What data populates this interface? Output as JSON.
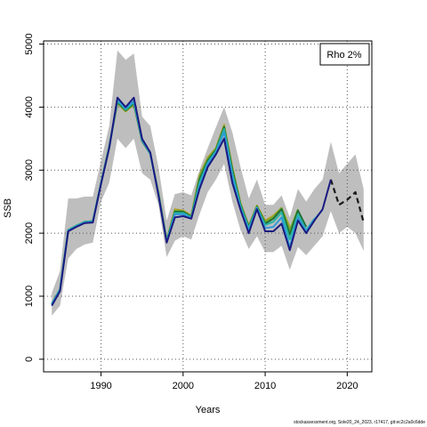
{
  "chart_data": {
    "type": "line",
    "xlabel": "Years",
    "ylabel": "SSB",
    "xlim": [
      1983,
      2023
    ],
    "ylim": [
      -200,
      5050
    ],
    "xticks": [
      1990,
      2000,
      2010,
      2020
    ],
    "yticks": [
      0,
      1000,
      2000,
      3000,
      4000,
      5000
    ],
    "grid": true,
    "legend_text": "Rho 2%",
    "legend_position": "top-right",
    "band": {
      "x": [
        1984,
        1985,
        1986,
        1987,
        1988,
        1989,
        1990,
        1991,
        1992,
        1993,
        1994,
        1995,
        1996,
        1997,
        1998,
        1999,
        2000,
        2001,
        2002,
        2003,
        2004,
        2005,
        2006,
        2007,
        2008,
        2009,
        2010,
        2011,
        2012,
        2013,
        2014,
        2015,
        2016,
        2017,
        2018,
        2019,
        2020,
        2021,
        2022
      ],
      "upper": [
        1050,
        1400,
        2550,
        2550,
        2580,
        2580,
        3150,
        3700,
        4900,
        4750,
        4850,
        3850,
        3700,
        3050,
        2200,
        2620,
        2650,
        2600,
        3000,
        3350,
        3680,
        4000,
        3600,
        3050,
        2550,
        2850,
        2450,
        2450,
        2600,
        2250,
        2700,
        2500,
        2700,
        2850,
        3450,
        2950,
        3100,
        3250,
        2700
      ],
      "lower": [
        690,
        850,
        1600,
        1750,
        1820,
        1850,
        2500,
        2800,
        3500,
        3350,
        3500,
        2950,
        2850,
        2450,
        1620,
        1880,
        1950,
        1900,
        2300,
        2650,
        2850,
        3100,
        2500,
        2050,
        1750,
        1950,
        1700,
        1700,
        1800,
        1420,
        1780,
        1650,
        1800,
        1950,
        2350,
        2000,
        2100,
        2000,
        1720
      ]
    },
    "series": [
      {
        "x": [
          1984,
          1985,
          1986,
          1987,
          1988,
          1989,
          1990,
          1991,
          1992,
          1993,
          1994,
          1995,
          1996,
          1997,
          1998,
          1999,
          2000,
          2001,
          2002,
          2003,
          2004,
          2005,
          2006,
          2007,
          2008,
          2009,
          2010,
          2011,
          2012,
          2013,
          2014,
          2015,
          2016,
          2017,
          2018
        ],
        "y": [
          850,
          1080,
          2030,
          2100,
          2160,
          2170,
          2780,
          3350,
          4150,
          4000,
          4150,
          3500,
          3280,
          2600,
          1850,
          2250,
          2270,
          2230,
          2700,
          3050,
          3250,
          3500,
          2800,
          2370,
          2000,
          2380,
          2030,
          2030,
          2150,
          1730,
          2200,
          2000,
          2200,
          2380,
          2850
        ],
        "color": "#1a1a80"
      },
      {
        "x": [
          1984,
          1985,
          1986,
          1987,
          1988,
          1989,
          1990,
          1991,
          1992,
          1993,
          1994,
          1995,
          1996,
          1997,
          1998,
          1999,
          2000,
          2001,
          2002,
          2003,
          2004,
          2005,
          2006,
          2007,
          2008,
          2009,
          2010,
          2011,
          2012,
          2013,
          2014,
          2015,
          2016,
          2017
        ],
        "y": [
          870,
          1100,
          2040,
          2110,
          2170,
          2180,
          2790,
          3360,
          4120,
          3980,
          4100,
          3480,
          3270,
          2610,
          1860,
          2300,
          2300,
          2240,
          2750,
          3100,
          3280,
          3600,
          2900,
          2400,
          2050,
          2400,
          2080,
          2100,
          2250,
          1780,
          2250,
          2030,
          2220,
          2370
        ],
        "color": "#2f9ad8"
      },
      {
        "x": [
          1984,
          1985,
          1986,
          1987,
          1988,
          1989,
          1990,
          1991,
          1992,
          1993,
          1994,
          1995,
          1996,
          1997,
          1998,
          1999,
          2000,
          2001,
          2002,
          2003,
          2004,
          2005,
          2006,
          2007,
          2008,
          2009,
          2010,
          2011,
          2012,
          2013,
          2014,
          2015,
          2016
        ],
        "y": [
          880,
          1110,
          2050,
          2120,
          2180,
          2190,
          2800,
          3370,
          4100,
          3960,
          4080,
          3470,
          3260,
          2620,
          1870,
          2320,
          2320,
          2250,
          2800,
          3120,
          3300,
          3650,
          2950,
          2430,
          2080,
          2410,
          2130,
          2180,
          2330,
          1900,
          2300,
          2050,
          2230
        ],
        "color": "#27b5a4"
      },
      {
        "x": [
          1984,
          1985,
          1986,
          1987,
          1988,
          1989,
          1990,
          1991,
          1992,
          1993,
          1994,
          1995,
          1996,
          1997,
          1998,
          1999,
          2000,
          2001,
          2002,
          2003,
          2004,
          2005,
          2006,
          2007,
          2008,
          2009,
          2010,
          2011,
          2012,
          2013,
          2014,
          2015
        ],
        "y": [
          880,
          1110,
          2050,
          2120,
          2180,
          2190,
          2800,
          3380,
          4080,
          3950,
          4060,
          3460,
          3260,
          2630,
          1880,
          2340,
          2340,
          2260,
          2850,
          3150,
          3320,
          3680,
          3000,
          2450,
          2100,
          2420,
          2150,
          2230,
          2380,
          1980,
          2360,
          2100
        ],
        "color": "#1e6e36"
      },
      {
        "x": [
          1984,
          1985,
          1986,
          1987,
          1988,
          1989,
          1990,
          1991,
          1992,
          1993,
          1994,
          1995,
          1996,
          1997,
          1998,
          1999,
          2000,
          2001,
          2002,
          2003,
          2004,
          2005,
          2006,
          2007,
          2008,
          2009,
          2010,
          2011,
          2012,
          2013,
          2014
        ],
        "y": [
          880,
          1110,
          2050,
          2120,
          2180,
          2190,
          2800,
          3380,
          4070,
          3940,
          4050,
          3460,
          3260,
          2640,
          1890,
          2360,
          2350,
          2270,
          2900,
          3180,
          3340,
          3700,
          3030,
          2470,
          2110,
          2430,
          2180,
          2260,
          2400,
          2050,
          2380
        ],
        "color": "#6fa82c"
      },
      {
        "x": [
          1984,
          1985,
          1986,
          1987,
          1988,
          1989,
          1990,
          1991,
          1992,
          1993,
          1994,
          1995,
          1996,
          1997,
          1998,
          1999,
          2000,
          2001,
          2002,
          2003,
          2004,
          2005,
          2006,
          2007,
          2008,
          2009,
          2010,
          2011,
          2012,
          2013
        ],
        "y": [
          880,
          1110,
          2050,
          2120,
          2180,
          2190,
          2800,
          3380,
          4060,
          3930,
          4040,
          3460,
          3260,
          2640,
          1890,
          2380,
          2360,
          2280,
          2920,
          3200,
          3350,
          3720,
          3050,
          2480,
          2120,
          2440,
          2200,
          2280,
          2400,
          2100
        ],
        "color": "#b9a02c"
      },
      {
        "x": [
          2018,
          2019,
          2020,
          2021,
          2022
        ],
        "y": [
          2850,
          2450,
          2530,
          2650,
          2170
        ],
        "color": "#1a1a1a",
        "dashed": true
      }
    ]
  },
  "footer": "stockassessment.org, Sole20_24_2023, r17417, git:ec2c2a0c6dde"
}
